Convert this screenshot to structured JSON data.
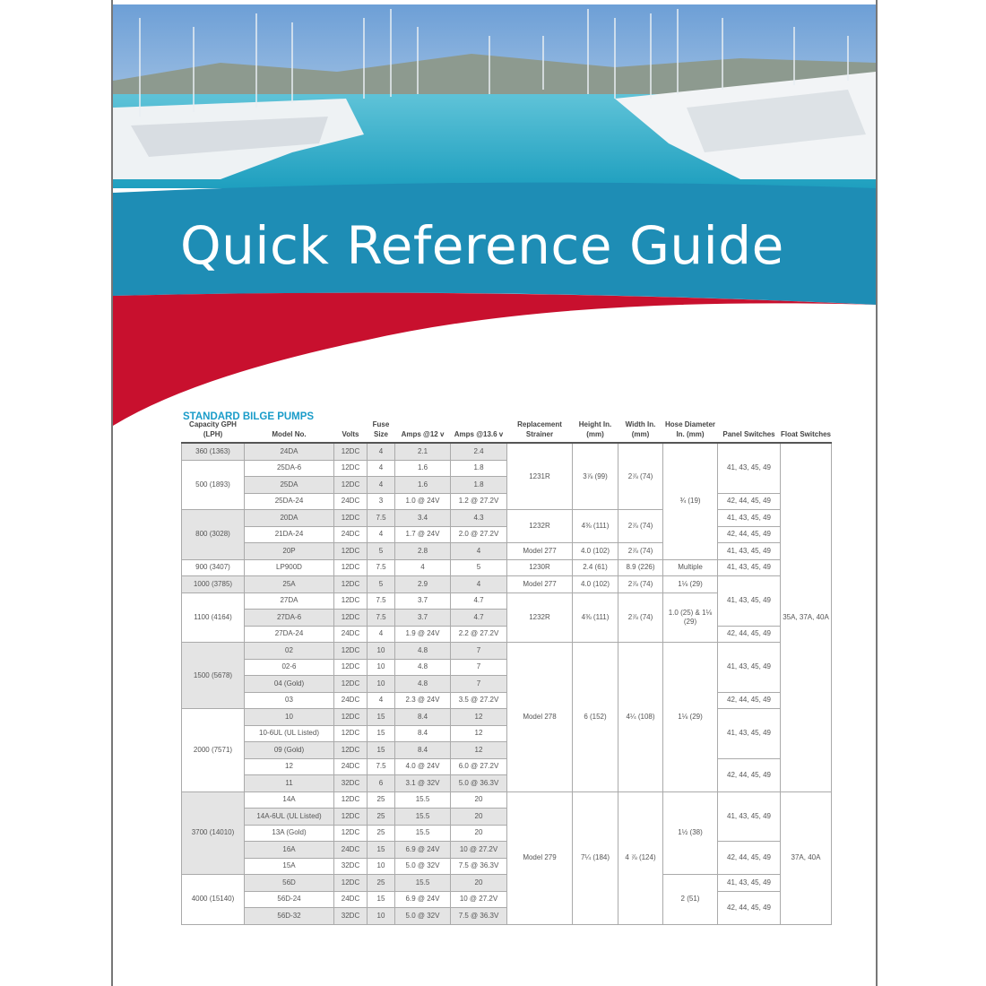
{
  "title": "Quick Reference Guide",
  "section": "STANDARD BILGE PUMPS",
  "colors": {
    "blue": "#1e8db5",
    "red": "#c8102e",
    "section": "#1a9cc9"
  },
  "headers": [
    "Capacity GPH (LPH)",
    "Model No.",
    "Volts",
    "Fuse Size",
    "Amps @12 v",
    "Amps @13.6 v",
    "Replacement Strainer",
    "Height In. (mm)",
    "Width In. (mm)",
    "Hose Diameter In. (mm)",
    "Panel Switches",
    "Float Switches"
  ],
  "rows": [
    [
      {
        "t": "360 (1363)",
        "s": 1
      },
      "24DA",
      "12DC",
      "4",
      "2.1",
      "2.4",
      {
        "t": "1231R",
        "s": 4
      },
      {
        "t": "3⅞ (99)",
        "s": 4
      },
      {
        "t": "2⅞ (74)",
        "s": 4
      },
      {
        "t": "¾ (19)",
        "s": 7
      },
      {
        "t": "41, 43, 45, 49",
        "s": 3
      },
      {
        "t": "35A, 37A, 40A",
        "s": 21
      }
    ],
    [
      {
        "t": "500 (1893)",
        "s": 3
      },
      "25DA-6",
      "12DC",
      "4",
      "1.6",
      "1.8"
    ],
    [
      "25DA",
      "12DC",
      "4",
      "1.6",
      "1.8"
    ],
    [
      "25DA-24",
      "24DC",
      "3",
      "1.0 @ 24V",
      "1.2 @ 27.2V",
      {
        "t": "42, 44, 45, 49",
        "s": 1
      }
    ],
    [
      {
        "t": "800 (3028)",
        "s": 3
      },
      "20DA",
      "12DC",
      "7.5",
      "3.4",
      "4.3",
      {
        "t": "1232R",
        "s": 2
      },
      {
        "t": "4⅜ (111)",
        "s": 2
      },
      {
        "t": "2⅞ (74)",
        "s": 2
      },
      {
        "t": "41, 43, 45, 49",
        "s": 1
      }
    ],
    [
      "21DA-24",
      "24DC",
      "4",
      "1.7 @ 24V",
      "2.0 @ 27.2V",
      {
        "t": "42, 44, 45, 49",
        "s": 1
      }
    ],
    [
      "20P",
      "12DC",
      "5",
      "2.8",
      "4",
      {
        "t": "Model 277",
        "s": 1
      },
      {
        "t": "4.0 (102)",
        "s": 1
      },
      {
        "t": "2⅞ (74)",
        "s": 1
      },
      {
        "t": "41, 43, 45, 49",
        "s": 1
      }
    ],
    [
      {
        "t": "900 (3407)",
        "s": 1
      },
      "LP900D",
      "12DC",
      "7.5",
      "4",
      "5",
      {
        "t": "1230R",
        "s": 1
      },
      {
        "t": "2.4 (61)",
        "s": 1
      },
      {
        "t": "8.9 (226)",
        "s": 1
      },
      {
        "t": "Multiple",
        "s": 1
      },
      {
        "t": "41, 43, 45, 49",
        "s": 1
      }
    ],
    [
      {
        "t": "1000 (3785)",
        "s": 1
      },
      "25A",
      "12DC",
      "5",
      "2.9",
      "4",
      {
        "t": "Model 277",
        "s": 1
      },
      {
        "t": "4.0 (102)",
        "s": 1
      },
      {
        "t": "2⅞ (74)",
        "s": 1
      },
      {
        "t": "1⅛ (29)",
        "s": 1
      },
      {
        "t": "41, 43, 45, 49",
        "s": 3
      }
    ],
    [
      {
        "t": "1100 (4164)",
        "s": 3
      },
      "27DA",
      "12DC",
      "7.5",
      "3.7",
      "4.7",
      {
        "t": "1232R",
        "s": 3
      },
      {
        "t": "4⅜ (111)",
        "s": 3
      },
      {
        "t": "2⅞ (74)",
        "s": 3
      },
      {
        "t": "1.0 (25) & 1⅛ (29)",
        "s": 3
      }
    ],
    [
      "27DA-6",
      "12DC",
      "7.5",
      "3.7",
      "4.7"
    ],
    [
      "27DA-24",
      "24DC",
      "4",
      "1.9 @ 24V",
      "2.2 @ 27.2V",
      {
        "t": "42, 44, 45, 49",
        "s": 1
      }
    ],
    [
      {
        "t": "1500 (5678)",
        "s": 4
      },
      "02",
      "12DC",
      "10",
      "4.8",
      "7",
      {
        "t": "Model 278",
        "s": 9
      },
      {
        "t": "6 (152)",
        "s": 9
      },
      {
        "t": "4¼ (108)",
        "s": 9
      },
      {
        "t": "1⅛ (29)",
        "s": 9
      },
      {
        "t": "41, 43, 45, 49",
        "s": 3
      }
    ],
    [
      "02-6",
      "12DC",
      "10",
      "4.8",
      "7"
    ],
    [
      "04 (Gold)",
      "12DC",
      "10",
      "4.8",
      "7"
    ],
    [
      "03",
      "24DC",
      "4",
      "2.3 @ 24V",
      "3.5 @ 27.2V",
      {
        "t": "42, 44, 45, 49",
        "s": 1
      }
    ],
    [
      {
        "t": "2000 (7571)",
        "s": 5
      },
      "10",
      "12DC",
      "15",
      "8.4",
      "12",
      {
        "t": "41, 43, 45, 49",
        "s": 3
      }
    ],
    [
      "10-6UL (UL Listed)",
      "12DC",
      "15",
      "8.4",
      "12"
    ],
    [
      "09 (Gold)",
      "12DC",
      "15",
      "8.4",
      "12"
    ],
    [
      "12",
      "24DC",
      "7.5",
      "4.0 @ 24V",
      "6.0 @ 27.2V",
      {
        "t": "42, 44, 45, 49",
        "s": 2
      }
    ],
    [
      "11",
      "32DC",
      "6",
      "3.1 @ 32V",
      "5.0 @ 36.3V"
    ],
    [
      {
        "t": "3700 (14010)",
        "s": 5
      },
      "14A",
      "12DC",
      "25",
      "15.5",
      "20",
      {
        "t": "Model 279",
        "s": 8
      },
      {
        "t": "7¼ (184)",
        "s": 8
      },
      {
        "t": "4 ⅞ (124)",
        "s": 8
      },
      {
        "t": "1½ (38)",
        "s": 5
      },
      {
        "t": "41, 43, 45, 49",
        "s": 3
      },
      {
        "t": "37A, 40A",
        "s": 8
      }
    ],
    [
      "14A-6UL (UL Listed)",
      "12DC",
      "25",
      "15.5",
      "20"
    ],
    [
      "13A (Gold)",
      "12DC",
      "25",
      "15.5",
      "20"
    ],
    [
      "16A",
      "24DC",
      "15",
      "6.9 @ 24V",
      "10 @ 27.2V",
      {
        "t": "42, 44, 45, 49",
        "s": 2
      }
    ],
    [
      "15A",
      "32DC",
      "10",
      "5.0 @ 32V",
      "7.5 @ 36.3V"
    ],
    [
      {
        "t": "4000 (15140)",
        "s": 3
      },
      "56D",
      "12DC",
      "25",
      "15.5",
      "20",
      {
        "t": "2 (51)",
        "s": 3
      },
      {
        "t": "41, 43, 45, 49",
        "s": 1
      }
    ],
    [
      "56D-24",
      "24DC",
      "15",
      "6.9 @ 24V",
      "10 @ 27.2V",
      {
        "t": "42, 44, 45, 49",
        "s": 2
      }
    ],
    [
      "56D-32",
      "32DC",
      "10",
      "5.0 @ 32V",
      "7.5 @ 36.3V"
    ]
  ]
}
